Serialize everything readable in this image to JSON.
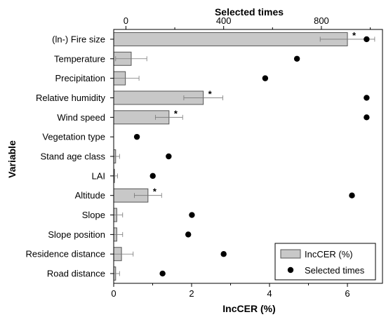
{
  "chart_data": {
    "type": "bar",
    "orientation": "horizontal",
    "ylabel": "Variable",
    "categories": [
      "(ln-) Fire size",
      "Temperature",
      "Precipitation",
      "Relative humidity",
      "Wind speed",
      "Vegetation type",
      "Stand age class",
      "LAI",
      "Altitude",
      "Slope",
      "Slope position",
      "Residence distance",
      "Road distance"
    ],
    "series": [
      {
        "name": "IncCER (%)",
        "kind": "bar",
        "axis": "bottom",
        "values": [
          6.0,
          0.45,
          0.3,
          2.3,
          1.42,
          0.0,
          0.05,
          0.02,
          0.88,
          0.08,
          0.08,
          0.2,
          0.05
        ],
        "error": [
          0.7,
          0.4,
          0.35,
          0.5,
          0.35,
          0.0,
          0.1,
          0.08,
          0.35,
          0.15,
          0.15,
          0.3,
          0.1
        ],
        "significant": [
          true,
          false,
          false,
          true,
          true,
          false,
          false,
          false,
          true,
          false,
          false,
          false,
          false
        ],
        "color": "#c8c8c8"
      },
      {
        "name": "Selected times",
        "kind": "scatter",
        "axis": "top",
        "values": [
          985,
          700,
          570,
          985,
          985,
          45,
          175,
          110,
          925,
          270,
          255,
          400,
          150
        ],
        "color": "#000000"
      }
    ],
    "bottom_axis": {
      "label": "IncCER (%)",
      "range": [
        0,
        6.9
      ],
      "ticks": [
        0,
        2,
        4,
        6
      ]
    },
    "top_axis": {
      "label": "Selected times",
      "range": [
        -50,
        1050
      ],
      "ticks": [
        0,
        400,
        800
      ]
    },
    "significance_marker": "*",
    "grid": false,
    "legend_position": "bottom-right"
  }
}
